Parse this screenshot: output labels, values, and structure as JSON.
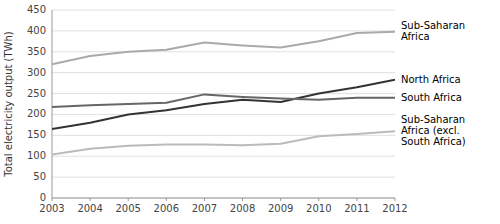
{
  "chart_data": {
    "type": "line",
    "ylabel": "Total electricity output (TWh)",
    "x": [
      2003,
      2004,
      2005,
      2006,
      2007,
      2008,
      2009,
      2010,
      2011,
      2012
    ],
    "series": [
      {
        "name": "Sub-Saharan\nAfrica",
        "color": "#aaaaaa",
        "values": [
          320,
          340,
          350,
          355,
          372,
          365,
          360,
          375,
          395,
          398
        ]
      },
      {
        "name": "North Africa",
        "color": "#333333",
        "values": [
          165,
          180,
          200,
          210,
          225,
          235,
          230,
          250,
          265,
          283
        ]
      },
      {
        "name": "South Africa",
        "color": "#666666",
        "values": [
          218,
          222,
          225,
          228,
          248,
          242,
          238,
          235,
          240,
          240
        ]
      },
      {
        "name": "Sub-Saharan\nAfrica (excl.\nSouth Africa)",
        "color": "#bbbbbb",
        "values": [
          104,
          118,
          125,
          128,
          128,
          126,
          130,
          148,
          153,
          160
        ]
      }
    ],
    "xlim": [
      2003,
      2012
    ],
    "xticks": [
      2003,
      2004,
      2005,
      2006,
      2007,
      2008,
      2009,
      2010,
      2011,
      2012
    ],
    "ylim": [
      0,
      450
    ],
    "yticks": [
      0,
      50,
      100,
      150,
      200,
      250,
      300,
      350,
      400,
      450
    ],
    "grid": true
  }
}
